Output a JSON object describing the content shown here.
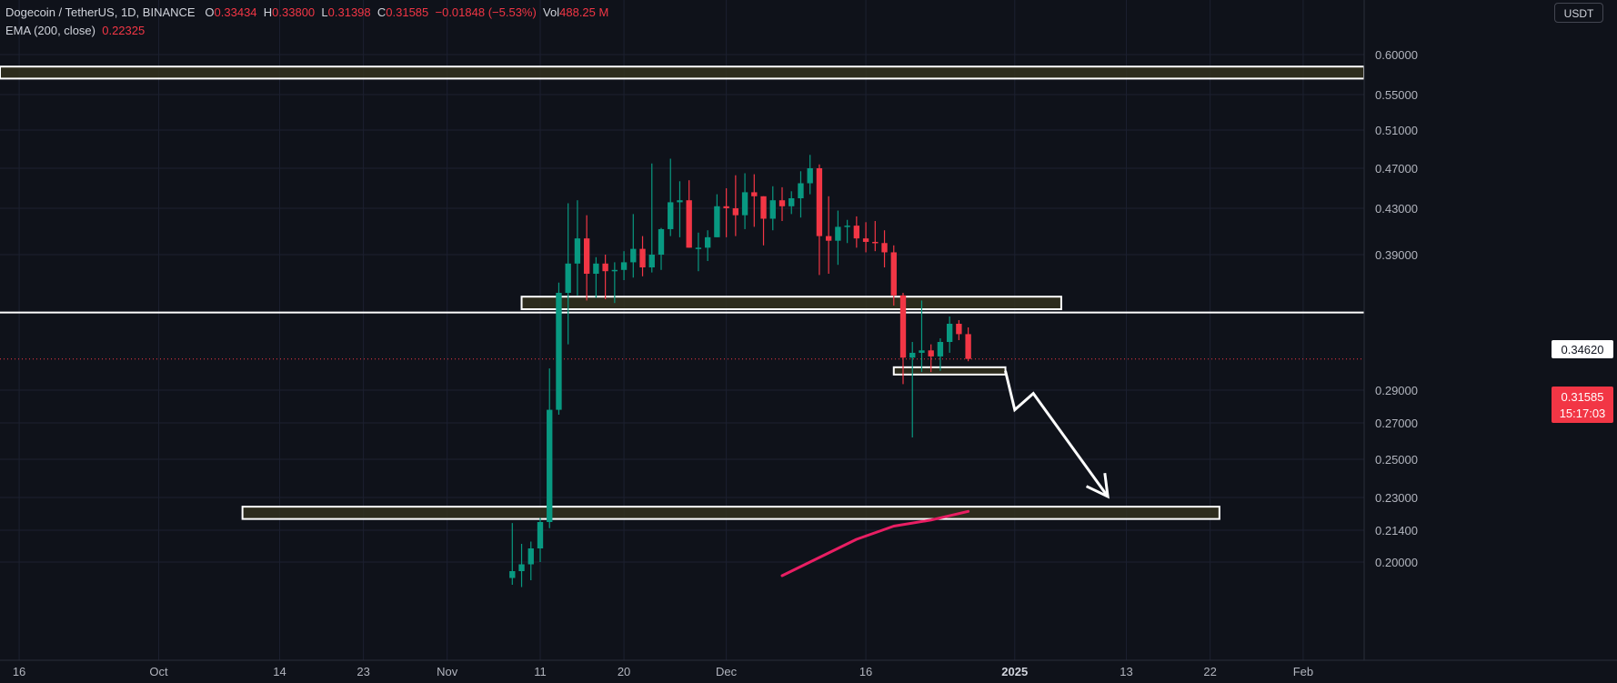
{
  "legend": {
    "symbol": "Dogecoin / TetherUS, 1D, BINANCE",
    "o_label": "O",
    "o_value": "0.33434",
    "h_label": "H",
    "h_value": "0.33800",
    "l_label": "L",
    "l_value": "0.31398",
    "c_label": "C",
    "c_value": "0.31585",
    "change": "−0.01848 (−5.53%)",
    "vol_label": "Vol",
    "vol_value": "488.25 M",
    "ema_label": "EMA (200, close)",
    "ema_value": "0.22325"
  },
  "currency_button": "USDT",
  "price_tags": {
    "level": "0.34620",
    "last": "0.31585",
    "countdown": "15:17:03"
  },
  "colors": {
    "background": "#0f121a",
    "up": "#089981",
    "down": "#f23645",
    "ema": "#e91e63",
    "zone_fill": "#33311f",
    "line": "#ffffff"
  },
  "chart_data": {
    "type": "candlestick",
    "symbol": "DOGE/USDT",
    "interval": "1D",
    "y_axis": {
      "ticks": [
        "0.60000",
        "0.55000",
        "0.51000",
        "0.47000",
        "0.43000",
        "0.39000",
        "0.29000",
        "0.27000",
        "0.25000",
        "0.23000",
        "0.21400",
        "0.20000"
      ]
    },
    "x_axis": {
      "ticks": [
        "16",
        "Oct",
        "14",
        "23",
        "Nov",
        "11",
        "20",
        "Dec",
        "16",
        "2025",
        "13",
        "22",
        "Feb"
      ]
    },
    "candles": [
      {
        "date": "2024-11-08",
        "o": 0.193,
        "h": 0.2175,
        "l": 0.19,
        "c": 0.196
      },
      {
        "date": "2024-11-09",
        "o": 0.196,
        "h": 0.208,
        "l": 0.189,
        "c": 0.199
      },
      {
        "date": "2024-11-10",
        "o": 0.199,
        "h": 0.209,
        "l": 0.192,
        "c": 0.206
      },
      {
        "date": "2024-11-11",
        "o": 0.206,
        "h": 0.22,
        "l": 0.2,
        "c": 0.218
      },
      {
        "date": "2024-11-12",
        "o": 0.218,
        "h": 0.308,
        "l": 0.215,
        "c": 0.278
      },
      {
        "date": "2024-11-13",
        "o": 0.278,
        "h": 0.368,
        "l": 0.275,
        "c": 0.36
      },
      {
        "date": "2024-11-14",
        "o": 0.36,
        "h": 0.435,
        "l": 0.328,
        "c": 0.383
      },
      {
        "date": "2024-11-15",
        "o": 0.383,
        "h": 0.438,
        "l": 0.358,
        "c": 0.404
      },
      {
        "date": "2024-11-16",
        "o": 0.404,
        "h": 0.424,
        "l": 0.354,
        "c": 0.375
      },
      {
        "date": "2024-11-17",
        "o": 0.375,
        "h": 0.388,
        "l": 0.356,
        "c": 0.383
      },
      {
        "date": "2024-11-18",
        "o": 0.383,
        "h": 0.39,
        "l": 0.355,
        "c": 0.377
      },
      {
        "date": "2024-11-19",
        "o": 0.377,
        "h": 0.384,
        "l": 0.352,
        "c": 0.378
      },
      {
        "date": "2024-11-20",
        "o": 0.378,
        "h": 0.393,
        "l": 0.37,
        "c": 0.384
      },
      {
        "date": "2024-11-21",
        "o": 0.384,
        "h": 0.425,
        "l": 0.372,
        "c": 0.395
      },
      {
        "date": "2024-11-22",
        "o": 0.395,
        "h": 0.406,
        "l": 0.373,
        "c": 0.38
      },
      {
        "date": "2024-11-23",
        "o": 0.38,
        "h": 0.475,
        "l": 0.376,
        "c": 0.39
      },
      {
        "date": "2024-11-24",
        "o": 0.39,
        "h": 0.413,
        "l": 0.378,
        "c": 0.412
      },
      {
        "date": "2024-11-25",
        "o": 0.412,
        "h": 0.48,
        "l": 0.406,
        "c": 0.436
      },
      {
        "date": "2024-11-26",
        "o": 0.436,
        "h": 0.457,
        "l": 0.405,
        "c": 0.438
      },
      {
        "date": "2024-11-27",
        "o": 0.438,
        "h": 0.458,
        "l": 0.396,
        "c": 0.396
      },
      {
        "date": "2024-11-28",
        "o": 0.396,
        "h": 0.409,
        "l": 0.377,
        "c": 0.396
      },
      {
        "date": "2024-11-29",
        "o": 0.396,
        "h": 0.411,
        "l": 0.385,
        "c": 0.405
      },
      {
        "date": "2024-11-30",
        "o": 0.405,
        "h": 0.444,
        "l": 0.405,
        "c": 0.432
      },
      {
        "date": "2024-12-01",
        "o": 0.432,
        "h": 0.45,
        "l": 0.405,
        "c": 0.43
      },
      {
        "date": "2024-12-02",
        "o": 0.43,
        "h": 0.463,
        "l": 0.406,
        "c": 0.424
      },
      {
        "date": "2024-12-03",
        "o": 0.424,
        "h": 0.465,
        "l": 0.412,
        "c": 0.446
      },
      {
        "date": "2024-12-04",
        "o": 0.446,
        "h": 0.464,
        "l": 0.414,
        "c": 0.442
      },
      {
        "date": "2024-12-05",
        "o": 0.442,
        "h": 0.442,
        "l": 0.398,
        "c": 0.421
      },
      {
        "date": "2024-12-06",
        "o": 0.421,
        "h": 0.452,
        "l": 0.411,
        "c": 0.438
      },
      {
        "date": "2024-12-07",
        "o": 0.438,
        "h": 0.451,
        "l": 0.419,
        "c": 0.432
      },
      {
        "date": "2024-12-08",
        "o": 0.432,
        "h": 0.447,
        "l": 0.425,
        "c": 0.44
      },
      {
        "date": "2024-12-09",
        "o": 0.44,
        "h": 0.467,
        "l": 0.422,
        "c": 0.455
      },
      {
        "date": "2024-12-10",
        "o": 0.455,
        "h": 0.484,
        "l": 0.444,
        "c": 0.47
      },
      {
        "date": "2024-12-11",
        "o": 0.47,
        "h": 0.474,
        "l": 0.374,
        "c": 0.406
      },
      {
        "date": "2024-12-12",
        "o": 0.406,
        "h": 0.442,
        "l": 0.375,
        "c": 0.402
      },
      {
        "date": "2024-12-13",
        "o": 0.402,
        "h": 0.428,
        "l": 0.382,
        "c": 0.414
      },
      {
        "date": "2024-12-14",
        "o": 0.414,
        "h": 0.42,
        "l": 0.4,
        "c": 0.415
      },
      {
        "date": "2024-12-15",
        "o": 0.415,
        "h": 0.423,
        "l": 0.396,
        "c": 0.404
      },
      {
        "date": "2024-12-16",
        "o": 0.404,
        "h": 0.418,
        "l": 0.392,
        "c": 0.401
      },
      {
        "date": "2024-12-17",
        "o": 0.401,
        "h": 0.419,
        "l": 0.393,
        "c": 0.4
      },
      {
        "date": "2024-12-18",
        "o": 0.4,
        "h": 0.411,
        "l": 0.38,
        "c": 0.392
      },
      {
        "date": "2024-12-19",
        "o": 0.392,
        "h": 0.398,
        "l": 0.35,
        "c": 0.358
      },
      {
        "date": "2024-12-20",
        "o": 0.358,
        "h": 0.36,
        "l": 0.295,
        "c": 0.317
      },
      {
        "date": "2024-12-21",
        "o": 0.317,
        "h": 0.33,
        "l": 0.262,
        "c": 0.321
      },
      {
        "date": "2024-12-22",
        "o": 0.321,
        "h": 0.354,
        "l": 0.305,
        "c": 0.323
      },
      {
        "date": "2024-12-23",
        "o": 0.323,
        "h": 0.328,
        "l": 0.305,
        "c": 0.318
      },
      {
        "date": "2024-12-24",
        "o": 0.318,
        "h": 0.332,
        "l": 0.306,
        "c": 0.33
      },
      {
        "date": "2024-12-25",
        "o": 0.33,
        "h": 0.344,
        "l": 0.321,
        "c": 0.34
      },
      {
        "date": "2024-12-26",
        "o": 0.34,
        "h": 0.342,
        "l": 0.331,
        "c": 0.3343
      },
      {
        "date": "2024-12-27",
        "o": 0.3343,
        "h": 0.338,
        "l": 0.314,
        "c": 0.3159
      }
    ],
    "ema_200": [
      {
        "date": "2024-12-07",
        "value": 0.194
      },
      {
        "date": "2024-12-11",
        "value": 0.202
      },
      {
        "date": "2024-12-15",
        "value": 0.21
      },
      {
        "date": "2024-12-19",
        "value": 0.216
      },
      {
        "date": "2024-12-23",
        "value": 0.219
      },
      {
        "date": "2024-12-27",
        "value": 0.2232
      }
    ],
    "zones": [
      {
        "y_low": 0.57,
        "y_high": 0.585,
        "x_start": "2024-09-01",
        "x_end": "2025-02-14"
      },
      {
        "y_low": 0.348,
        "y_high": 0.357,
        "x_start": "2024-11-09",
        "x_end": "2025-01-06"
      },
      {
        "y_low": 0.306,
        "y_high": 0.309,
        "x_start": "2024-12-19",
        "x_end": "2024-12-31"
      },
      {
        "y_low": 0.2195,
        "y_high": 0.2255,
        "x_start": "2024-10-10",
        "x_end": "2025-01-23"
      }
    ],
    "horizontal_line": 0.3462,
    "last_price": 0.31585,
    "projection_arrow": [
      {
        "date": "2024-12-31",
        "value": 0.306
      },
      {
        "date": "2025-01-01",
        "value": 0.278
      },
      {
        "date": "2025-01-03",
        "value": 0.288
      },
      {
        "date": "2025-01-11",
        "value": 0.2305
      }
    ]
  }
}
